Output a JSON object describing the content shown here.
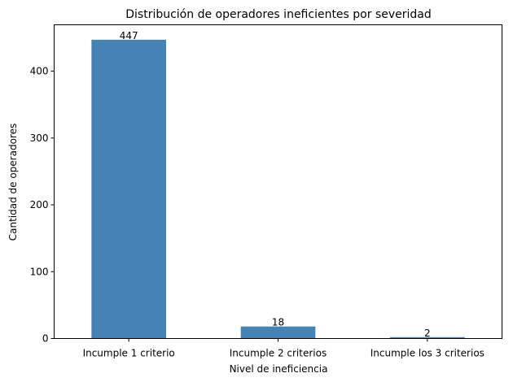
{
  "chart_data": {
    "type": "bar",
    "title": "Distribución de operadores ineficientes por severidad",
    "xlabel": "Nivel de ineficiencia",
    "ylabel": "Cantidad de operadores",
    "categories": [
      "Incumple 1 criterio",
      "Incumple 2 criterios",
      "Incumple los 3 criterios"
    ],
    "values": [
      447,
      18,
      2
    ],
    "data_labels": [
      "447",
      "18",
      "2"
    ],
    "ylim": [
      0,
      469.35
    ],
    "yticks": [
      0,
      100,
      200,
      300,
      400
    ],
    "ytick_labels": [
      "0",
      "100",
      "200",
      "300",
      "400"
    ],
    "bar_color": "#4682b4",
    "grid": false,
    "legend": "none"
  }
}
